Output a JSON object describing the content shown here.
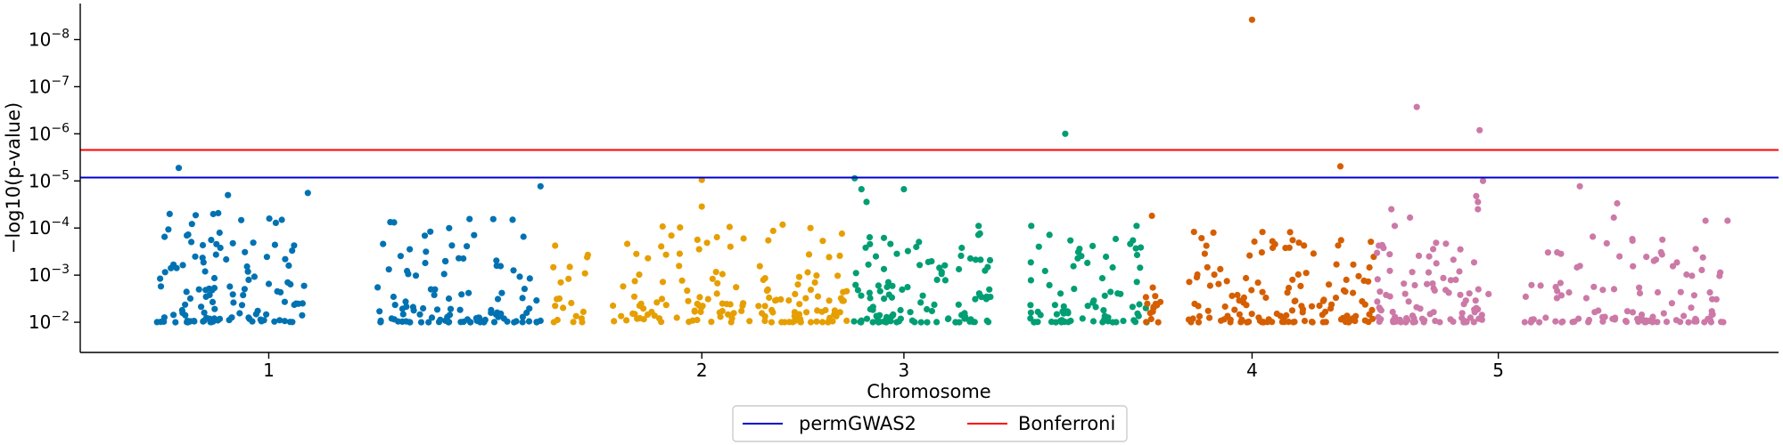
{
  "chart_data": {
    "type": "scatter",
    "subtype": "manhattan",
    "xlabel": "Chromosome",
    "ylabel": "−log10(p-value)",
    "y_scale": "log",
    "y_inverted": true,
    "ylim": [
      0.02,
      3.6e-09
    ],
    "xlim": [
      0,
      100
    ],
    "grid": false,
    "legend_position": "bottom-center",
    "x_ticks": [
      {
        "label": "1",
        "x": 11.1
      },
      {
        "label": "2",
        "x": 36.6
      },
      {
        "label": "3",
        "x": 48.5
      },
      {
        "label": "4",
        "x": 69.0
      },
      {
        "label": "5",
        "x": 83.5
      }
    ],
    "y_ticks": [
      {
        "base": "10",
        "exp": "−2",
        "value": 0.01
      },
      {
        "base": "10",
        "exp": "−3",
        "value": 0.001
      },
      {
        "base": "10",
        "exp": "−4",
        "value": 0.0001
      },
      {
        "base": "10",
        "exp": "−5",
        "value": 1e-05
      },
      {
        "base": "10",
        "exp": "−6",
        "value": 1e-06
      },
      {
        "base": "10",
        "exp": "−7",
        "value": 1e-07
      },
      {
        "base": "10",
        "exp": "−8",
        "value": 1e-08
      }
    ],
    "thresholds": [
      {
        "name": "permGWAS2",
        "value": 8.5e-06,
        "color": "#0000cc"
      },
      {
        "name": "Bonferroni",
        "value": 2.2e-06,
        "color": "#ff0000"
      }
    ],
    "series": [
      {
        "chromosome": "1",
        "color": "#0072b2",
        "x_range": [
          4.4,
          27.5
        ],
        "highlights": [
          [
            5.8,
            5.3e-06
          ],
          [
            8.7,
            2e-05
          ],
          [
            13.4,
            1.8e-05
          ],
          [
            27.1,
            1.3e-05
          ]
        ],
        "x_clusters": [
          [
            4.5,
            13.2,
            120,
            4e-05
          ],
          [
            17.5,
            27.3,
            110,
            5.5e-05
          ]
        ]
      },
      {
        "chromosome": "2",
        "color": "#e69f00",
        "x_range": [
          27.6,
          45.4
        ],
        "highlights": [
          [
            36.6,
            9.5e-06
          ],
          [
            36.6,
            3.5e-05
          ],
          [
            43.0,
            0.0001
          ]
        ],
        "x_clusters": [
          [
            27.6,
            29.9,
            20,
            0.00015
          ],
          [
            31.3,
            45.2,
            150,
            8e-05
          ]
        ]
      },
      {
        "chromosome": "3",
        "color": "#009e73",
        "x_range": [
          45.4,
          63.7
        ],
        "highlights": [
          [
            45.6,
            8.8e-06
          ],
          [
            46.0,
            1.5e-05
          ],
          [
            46.3,
            2.8e-05
          ],
          [
            48.5,
            1.5e-05
          ],
          [
            52.9,
            9e-05
          ],
          [
            56.0,
            9e-05
          ],
          [
            62.2,
            9e-05
          ],
          [
            59.3,
            0.00055
          ],
          [
            58.0,
            1e-06
          ]
        ],
        "x_clusters": [
          [
            45.5,
            53.6,
            110,
            0.00013
          ],
          [
            55.8,
            62.8,
            80,
            0.00012
          ]
        ]
      },
      {
        "chromosome": "4",
        "color": "#d55e00",
        "x_range": [
          62.5,
          76.3
        ],
        "highlights": [
          [
            63.1,
            5.5e-05
          ],
          [
            74.2,
            4.9e-06
          ],
          [
            69.0,
            3.8e-09
          ]
        ],
        "x_clusters": [
          [
            62.7,
            63.7,
            15,
            0.0013
          ],
          [
            65.2,
            76.3,
            140,
            0.00012
          ]
        ]
      },
      {
        "chromosome": "5",
        "color": "#cc79a7",
        "x_range": [
          76.3,
          97.0
        ],
        "highlights": [
          [
            77.2,
            4e-05
          ],
          [
            77.4,
            9e-05
          ],
          [
            82.3,
            2.8e-05
          ],
          [
            82.2,
            2.1e-05
          ],
          [
            82.3,
            4e-05
          ],
          [
            82.6,
            1e-05
          ],
          [
            77.1,
            0.00036
          ],
          [
            88.3,
            1.3e-05
          ],
          [
            90.3,
            6e-05
          ],
          [
            90.5,
            3e-05
          ],
          [
            95.7,
            7e-05
          ],
          [
            97.0,
            7e-05
          ],
          [
            78.3,
            6e-05
          ]
        ],
        "extreme": [
          [
            78.7,
            2.7e-07
          ],
          [
            82.4,
            8.4e-07
          ]
        ],
        "x_clusters": [
          [
            76.3,
            83.0,
            90,
            0.0002
          ],
          [
            85.0,
            96.8,
            110,
            0.00015
          ]
        ]
      }
    ]
  }
}
